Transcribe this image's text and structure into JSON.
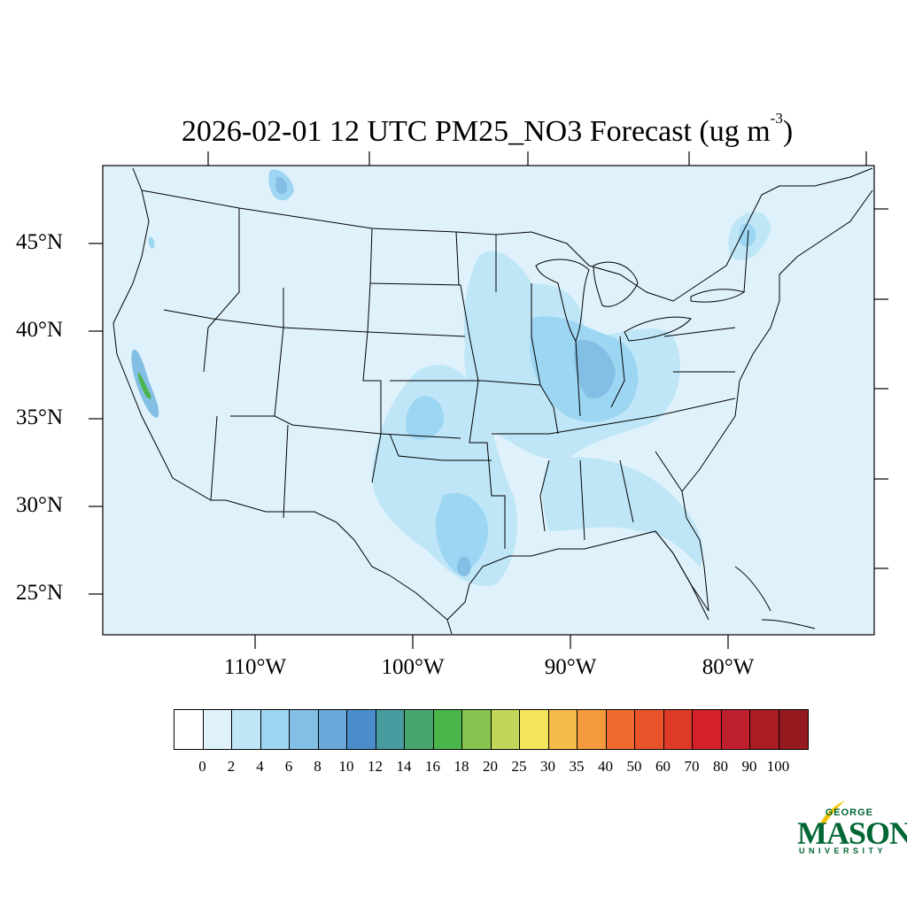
{
  "title": {
    "main": "2026-02-01 12 UTC PM25_NO3 Forecast (ug m",
    "exponent": "-3",
    "close": ")"
  },
  "map": {
    "latitude_labels": [
      "45°N",
      "40°N",
      "35°N",
      "30°N",
      "25°N"
    ],
    "longitude_labels": [
      "110°W",
      "100°W",
      "90°W",
      "80°W"
    ],
    "ocean_color": "#dff2fb",
    "boundary_color": "#000000"
  },
  "colorbar": {
    "labels": [
      "0",
      "2",
      "4",
      "6",
      "8",
      "10",
      "12",
      "14",
      "16",
      "18",
      "20",
      "25",
      "30",
      "35",
      "40",
      "50",
      "60",
      "70",
      "80",
      "90",
      "100"
    ],
    "colors": [
      "#ffffff",
      "#dff2fb",
      "#bfe6f7",
      "#9dd6f3",
      "#83bfe4",
      "#6aa8db",
      "#4b8dcb",
      "#479a9e",
      "#48a56f",
      "#4ab54a",
      "#86c44f",
      "#c3d65a",
      "#f5e35a",
      "#f5bb48",
      "#f59a3c",
      "#f06a2d",
      "#e8532a",
      "#dd3a28",
      "#d42029",
      "#bf1e2d",
      "#a81c22",
      "#951a1f"
    ]
  },
  "logo": {
    "line1": "GEORGE",
    "line2": "MASON",
    "line3": "UNIVERSITY",
    "color": "#006633",
    "accent": "#f2c300"
  }
}
